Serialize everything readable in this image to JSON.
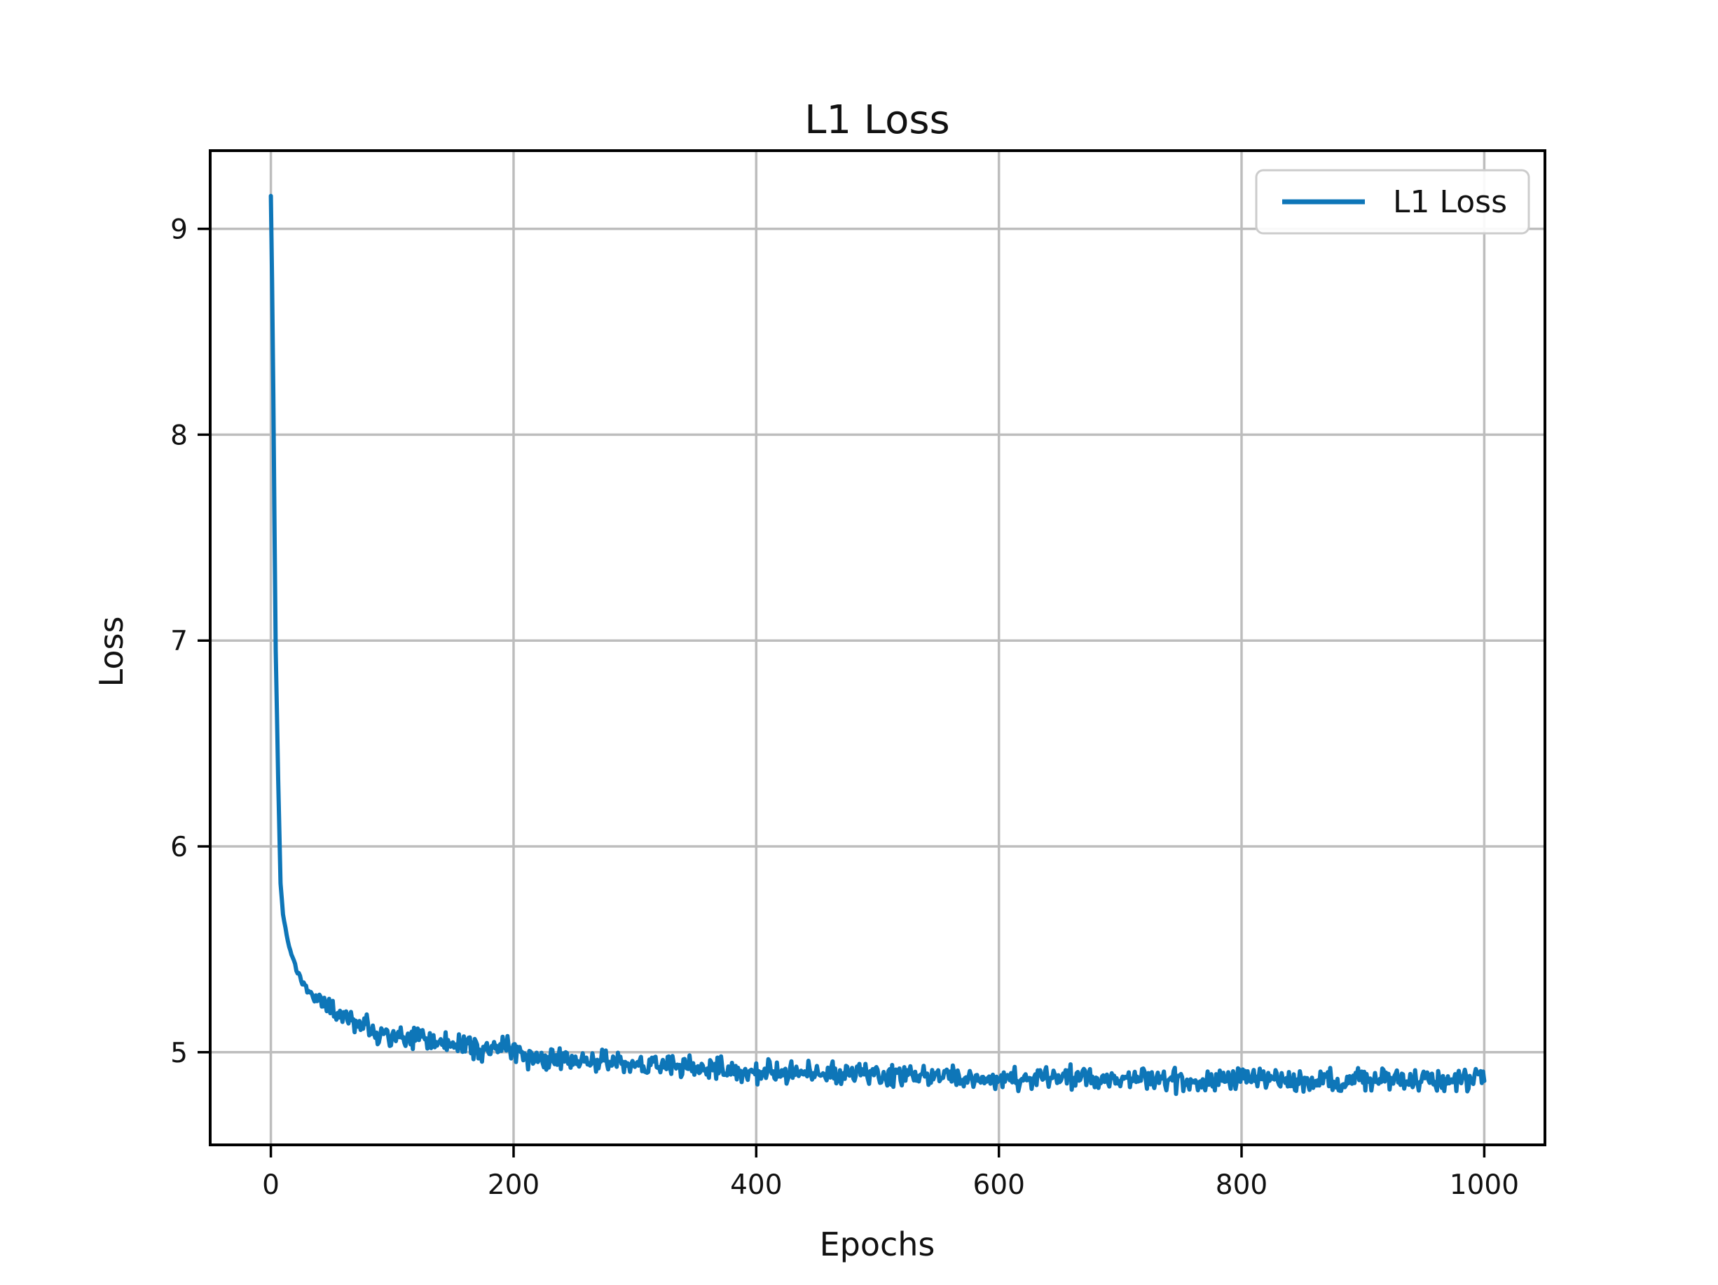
{
  "figure": {
    "background_color": "#ffffff",
    "frame_color": "#000000",
    "grid_color": "#bdbdbd"
  },
  "chart_data": {
    "type": "line",
    "title": "L1 Loss",
    "xlabel": "Epochs",
    "ylabel": "Loss",
    "xlim": [
      -50,
      1050
    ],
    "ylim": [
      4.55,
      9.38
    ],
    "xticks": [
      0,
      200,
      400,
      600,
      800,
      1000
    ],
    "yticks": [
      5,
      6,
      7,
      8,
      9
    ],
    "grid": true,
    "legend": {
      "position": "upper right",
      "entries": [
        {
          "label": "L1 Loss",
          "color": "#0e76b8"
        }
      ]
    },
    "series": [
      {
        "name": "L1 Loss",
        "color": "#0e76b8",
        "x_start": 0,
        "x_end": 1000,
        "x_step": 1,
        "keypoints": [
          [
            0,
            9.16
          ],
          [
            1,
            8.75
          ],
          [
            2,
            8.2
          ],
          [
            3,
            7.55
          ],
          [
            4,
            6.95
          ],
          [
            6,
            6.33
          ],
          [
            8,
            5.82
          ],
          [
            10,
            5.67
          ],
          [
            13,
            5.57
          ],
          [
            16,
            5.49
          ],
          [
            22,
            5.39
          ],
          [
            30,
            5.3
          ],
          [
            40,
            5.25
          ],
          [
            50,
            5.21
          ],
          [
            65,
            5.15
          ],
          [
            85,
            5.1
          ],
          [
            100,
            5.07
          ],
          [
            130,
            5.06
          ],
          [
            160,
            5.03
          ],
          [
            185,
            5.01
          ],
          [
            197,
            5.03
          ],
          [
            210,
            4.98
          ],
          [
            240,
            4.96
          ],
          [
            270,
            4.95
          ],
          [
            300,
            4.94
          ],
          [
            340,
            4.93
          ],
          [
            380,
            4.91
          ],
          [
            420,
            4.9
          ],
          [
            460,
            4.9
          ],
          [
            500,
            4.89
          ],
          [
            550,
            4.88
          ],
          [
            600,
            4.87
          ],
          [
            650,
            4.875
          ],
          [
            700,
            4.87
          ],
          [
            750,
            4.865
          ],
          [
            800,
            4.87
          ],
          [
            850,
            4.86
          ],
          [
            900,
            4.87
          ],
          [
            950,
            4.86
          ],
          [
            1000,
            4.87
          ]
        ],
        "noise_amplitude": 0.07,
        "noise_onset_x": 10,
        "noise_ramp_span": 50,
        "noise_seed": 42
      }
    ]
  }
}
